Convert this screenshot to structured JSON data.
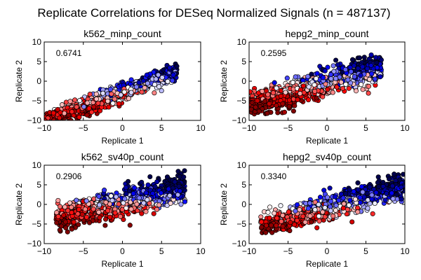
{
  "chart_data": {
    "type": "scatter",
    "title": "Replicate Correlations for DESeq Normalized Signals (n = 487137)",
    "colormap": "seismic",
    "colormap_stops": [
      "#00004c",
      "#0000ff",
      "#ffffff",
      "#ff0000",
      "#800000"
    ],
    "marker_edge_color": "#000000",
    "panels": [
      {
        "id": "k562_minp_count",
        "title": "k562_minp_count",
        "xlabel": "Replicate 1",
        "ylabel": "Replicate 2",
        "xlim": [
          -10,
          10
        ],
        "ylim": [
          -10,
          10
        ],
        "xticks": [
          -10,
          -5,
          0,
          5,
          10
        ],
        "yticks": [
          -10,
          -5,
          0,
          5,
          10
        ],
        "xtick_labels": [
          "−10",
          "−5",
          "0",
          "5",
          "10"
        ],
        "ytick_labels": [
          "−10",
          "−5",
          "0",
          "5",
          "10"
        ],
        "annotation": "0.6741",
        "cloud": {
          "x_range": [
            -10.5,
            7
          ],
          "slope": 0.75,
          "intercept": -2.8,
          "spread": 2.2,
          "n": 900,
          "color_axis": "diagonal"
        }
      },
      {
        "id": "hepg2_minp_count",
        "title": "hepg2_minp_count",
        "xlabel": "Replicate 1",
        "ylabel": "Replicate 2",
        "xlim": [
          -10,
          10
        ],
        "ylim": [
          -10,
          10
        ],
        "xticks": [
          -10,
          -5,
          0,
          5,
          10
        ],
        "yticks": [
          -10,
          -5,
          0,
          5,
          10
        ],
        "xtick_labels": [
          "−10",
          "−5",
          "0",
          "5",
          "10"
        ],
        "ytick_labels": [
          "−10",
          "−5",
          "0",
          "5",
          "10"
        ],
        "annotation": "0.2595",
        "cloud": {
          "x_range": [
            -10,
            7
          ],
          "slope": 0.55,
          "intercept": -0.5,
          "spread": 3.3,
          "n": 1000,
          "color_axis": "diagonal"
        }
      },
      {
        "id": "k562_sv40p_count",
        "title": "k562_sv40p_count",
        "xlabel": "Replicate 1",
        "ylabel": "Replicate 2",
        "xlim": [
          -10,
          10
        ],
        "ylim": [
          -10,
          10
        ],
        "xticks": [
          -10,
          -5,
          0,
          5,
          10
        ],
        "yticks": [
          -10,
          -5,
          0,
          5,
          10
        ],
        "xtick_labels": [
          "−10",
          "−5",
          "0",
          "5",
          "10"
        ],
        "ytick_labels": [
          "−10",
          "−5",
          "0",
          "5",
          "10"
        ],
        "annotation": "0.2906",
        "cloud": {
          "x_range": [
            -8.5,
            8
          ],
          "slope": 0.45,
          "intercept": 0.3,
          "spread": 3.4,
          "n": 1000,
          "color_axis": "diagonal"
        }
      },
      {
        "id": "hepg2_sv40p_count",
        "title": "hepg2_sv40p_count",
        "xlabel": "Replicate 1",
        "ylabel": "Replicate 2",
        "xlim": [
          -10,
          10
        ],
        "ylim": [
          -10,
          10
        ],
        "xticks": [
          -10,
          -5,
          0,
          5,
          10
        ],
        "yticks": [
          -10,
          -5,
          0,
          5,
          10
        ],
        "xtick_labels": [
          "−10",
          "−5",
          "0",
          "5",
          "10"
        ],
        "ytick_labels": [
          "−10",
          "−5",
          "0",
          "5",
          "10"
        ],
        "annotation": "0.3340",
        "cloud": {
          "x_range": [
            -8.5,
            10
          ],
          "slope": 0.55,
          "intercept": -0.8,
          "spread": 3.0,
          "n": 1000,
          "color_axis": "diagonal"
        }
      }
    ]
  }
}
